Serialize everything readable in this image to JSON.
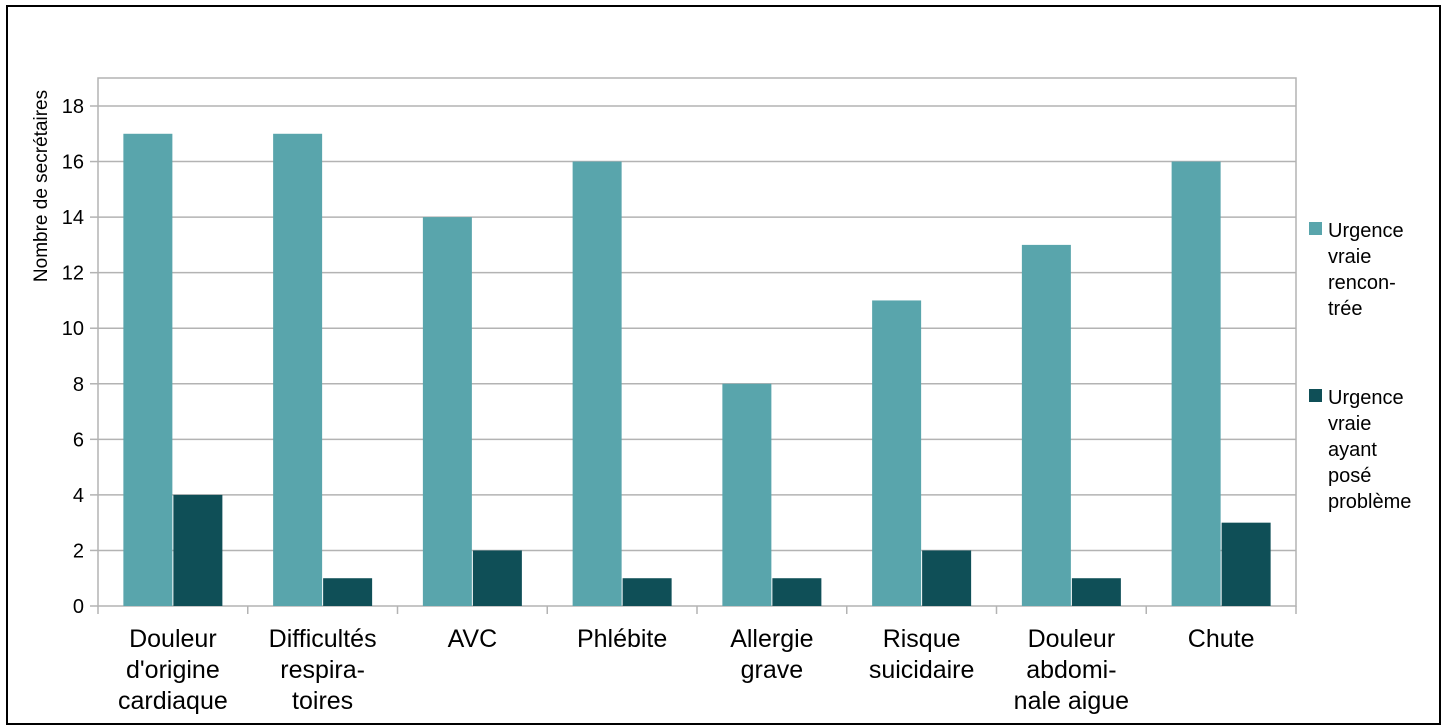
{
  "chart_data": {
    "type": "bar",
    "title": "",
    "xlabel": "",
    "ylabel": "Nombre de secrétaires",
    "ylim": [
      0,
      18
    ],
    "yticks": [
      0,
      2,
      4,
      6,
      8,
      10,
      12,
      14,
      16,
      18
    ],
    "grid": true,
    "legend_position": "right",
    "categories": [
      [
        "Douleur",
        "d'origine",
        "cardiaque"
      ],
      [
        "Difficultés",
        "respira-",
        "toires"
      ],
      [
        "AVC"
      ],
      [
        "Phlébite"
      ],
      [
        "Allergie",
        "grave"
      ],
      [
        "Risque",
        "suicidaire"
      ],
      [
        "Douleur",
        "abdomi-",
        "nale aigue"
      ],
      [
        "Chute"
      ]
    ],
    "series": [
      {
        "name": [
          "Urgence",
          "vraie",
          "rencon-",
          "trée"
        ],
        "color": "#59a5ac",
        "values": [
          17,
          17,
          14,
          16,
          8,
          11,
          13,
          16
        ]
      },
      {
        "name": [
          "Urgence",
          "vraie",
          "ayant",
          "posé",
          "problème"
        ],
        "color": "#0f4f57",
        "values": [
          4,
          1,
          2,
          1,
          1,
          2,
          1,
          3
        ]
      }
    ]
  }
}
